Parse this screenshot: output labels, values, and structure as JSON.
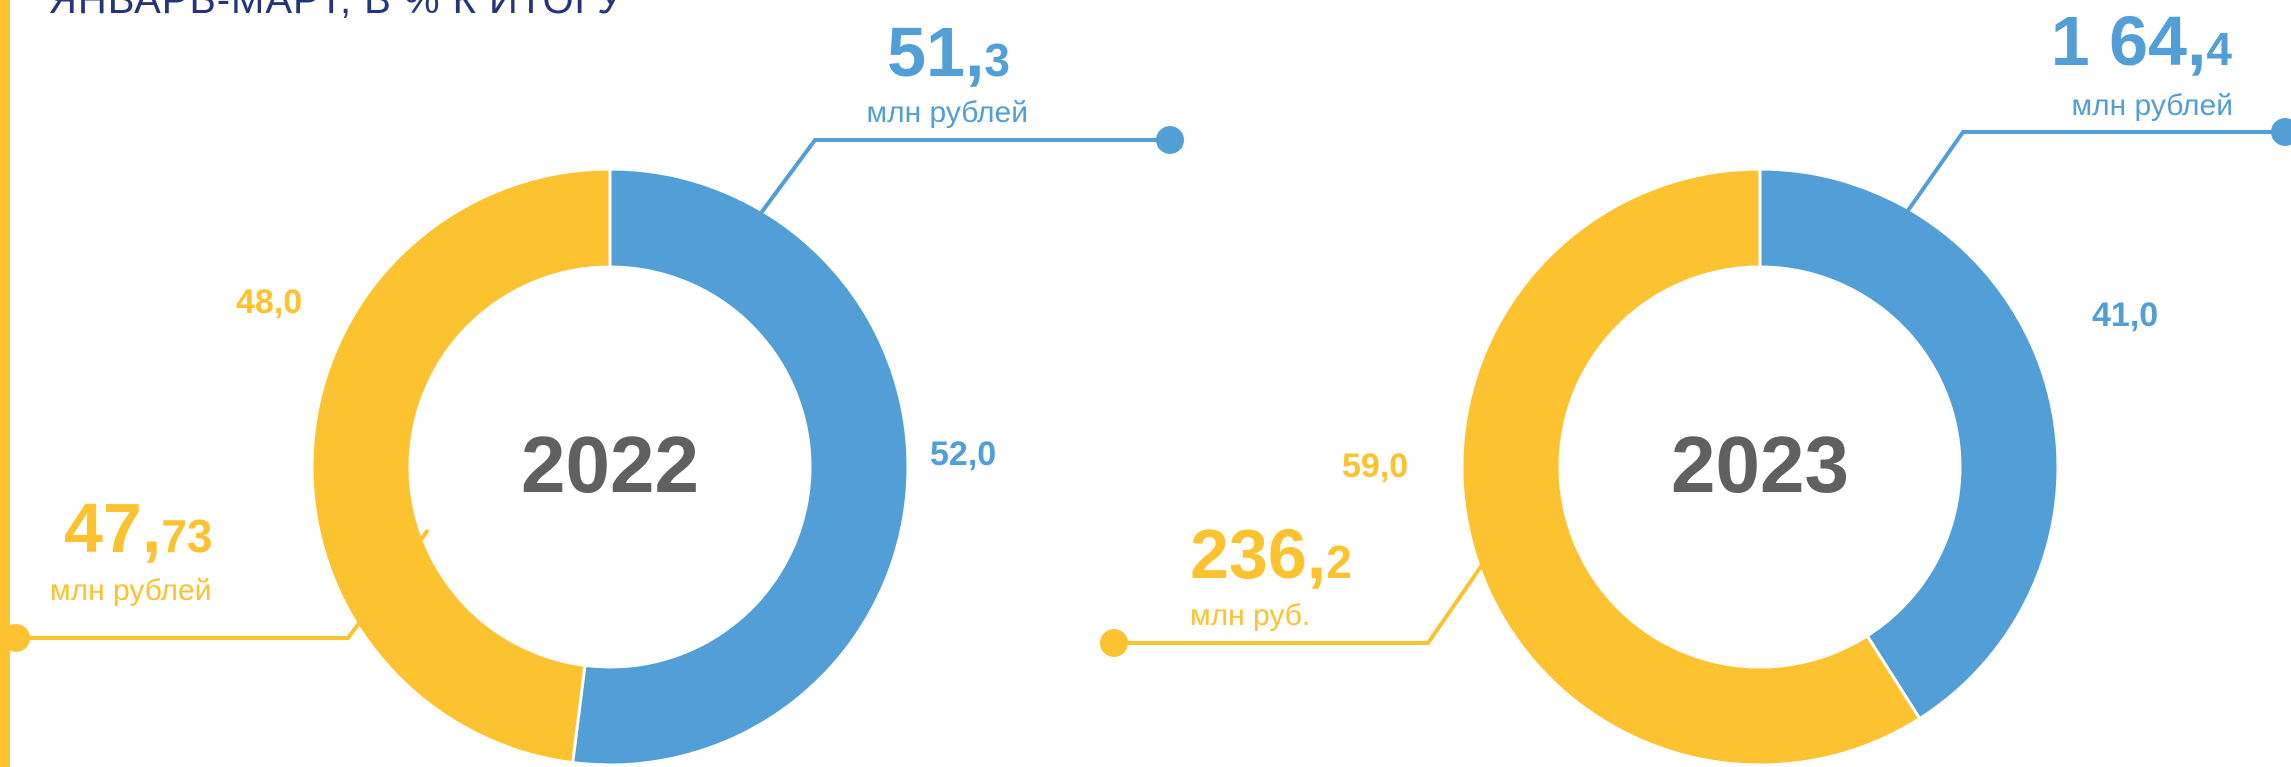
{
  "title": "ЯНВАРЬ-МАРТ, В % К ИТОГУ",
  "colors": {
    "blue": "#529ED6",
    "yellow": "#FCC22F",
    "year_text": "#606060",
    "title_text": "#25357A"
  },
  "chart_data": [
    {
      "type": "pie",
      "year": "2022",
      "slices": [
        {
          "label_pct": "52,0",
          "value": 52.0,
          "color": "#529ED6",
          "amount_int": "51,",
          "amount_dec": "3",
          "unit": "млн рублей"
        },
        {
          "label_pct": "48,0",
          "value": 48.0,
          "color": "#FCC22F",
          "amount_int": "47,",
          "amount_dec": "73",
          "unit": "млн рублей"
        }
      ]
    },
    {
      "type": "pie",
      "year": "2023",
      "slices": [
        {
          "label_pct": "41,0",
          "value": 41.0,
          "color": "#529ED6",
          "amount_int": "1 64,",
          "amount_dec": "4",
          "unit": "млн  рублей"
        },
        {
          "label_pct": "59,0",
          "value": 59.0,
          "color": "#FCC22F",
          "amount_int": "236,",
          "amount_dec": "2",
          "unit": "млн руб."
        }
      ]
    }
  ]
}
